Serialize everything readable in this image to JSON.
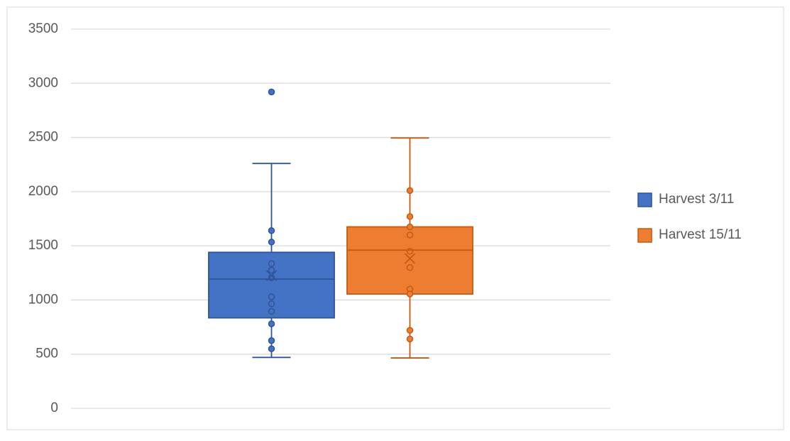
{
  "chart_data": {
    "type": "box",
    "ylim": [
      0,
      3500
    ],
    "yticks": [
      0,
      500,
      1000,
      1500,
      2000,
      2500,
      3000,
      3500
    ],
    "grid": true,
    "legend": "right",
    "series": [
      {
        "name": "Harvest 3/11",
        "color": "#4472c4",
        "edge": "#2f5597",
        "whisker_low": 470,
        "q1": 835,
        "median": 1193,
        "q3": 1440,
        "whisker_high": 2260,
        "mean": 1225,
        "points": [
          1640,
          1535,
          1335,
          1275,
          1205,
          1030,
          965,
          895,
          780,
          625,
          550
        ],
        "outliers": [
          2920
        ]
      },
      {
        "name": "Harvest 15/11",
        "color": "#ed7d31",
        "edge": "#c55a11",
        "whisker_low": 465,
        "q1": 1055,
        "median": 1460,
        "q3": 1675,
        "whisker_high": 2495,
        "mean": 1383,
        "points": [
          2010,
          1770,
          1675,
          1600,
          1450,
          1300,
          1100,
          1055,
          720,
          640
        ],
        "outliers": []
      }
    ]
  }
}
